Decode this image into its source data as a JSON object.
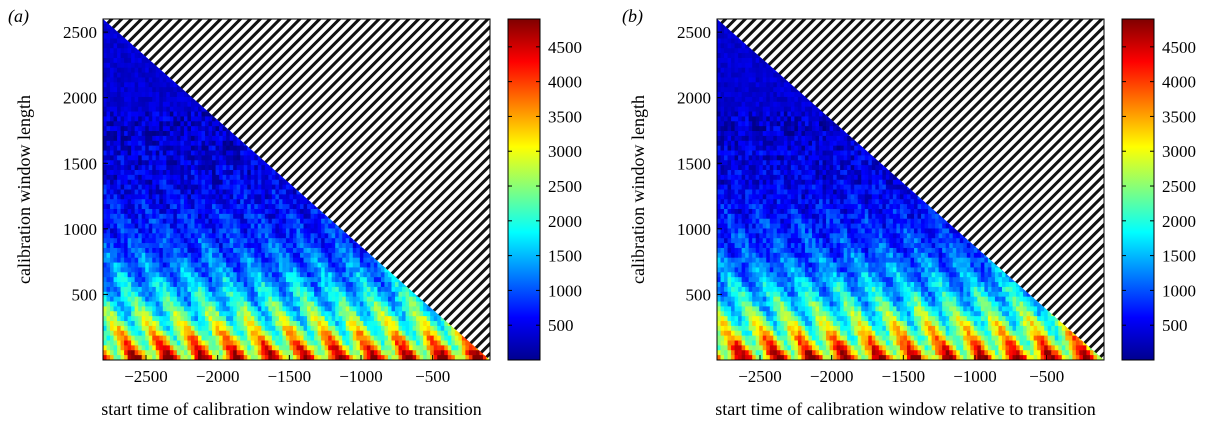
{
  "chart_data": [
    {
      "type": "heatmap",
      "panel_label": "(a)",
      "xlabel": "start time of calibration window relative to transition",
      "ylabel": "calibration window length",
      "xlim": [
        -2800,
        -100
      ],
      "ylim": [
        0,
        2600
      ],
      "xticks": [
        -2500,
        -2000,
        -1500,
        -1000,
        -500
      ],
      "xtick_labels": [
        "−2500",
        "−2000",
        "−1500",
        "−1000",
        "−500"
      ],
      "yticks": [
        500,
        1000,
        1500,
        2000,
        2500
      ],
      "ytick_labels": [
        "500",
        "1000",
        "1500",
        "2000",
        "2500"
      ],
      "colorbar": {
        "min": 0,
        "max": 4900,
        "ticks": [
          500,
          1000,
          1500,
          2000,
          2500,
          3000,
          3500,
          4000,
          4500
        ],
        "tick_labels": [
          "500",
          "1000",
          "1500",
          "2000",
          "2500",
          "3000",
          "3500",
          "4000",
          "4500"
        ],
        "colormap": "jet"
      },
      "region": "lower-left triangle (start + length ≤ −100), undefined region hatched",
      "grid": false
    },
    {
      "type": "heatmap",
      "panel_label": "(b)",
      "xlabel": "start time of calibration window relative to transition",
      "ylabel": "calibration window length",
      "xlim": [
        -2800,
        -100
      ],
      "ylim": [
        0,
        2600
      ],
      "xticks": [
        -2500,
        -2000,
        -1500,
        -1000,
        -500
      ],
      "xtick_labels": [
        "−2500",
        "−2000",
        "−1500",
        "−1000",
        "−500"
      ],
      "yticks": [
        500,
        1000,
        1500,
        2000,
        2500
      ],
      "ytick_labels": [
        "500",
        "1000",
        "1500",
        "2000",
        "2500"
      ],
      "colorbar": {
        "min": 0,
        "max": 4900,
        "ticks": [
          500,
          1000,
          1500,
          2000,
          2500,
          3000,
          3500,
          4000,
          4500
        ],
        "tick_labels": [
          "500",
          "1000",
          "1500",
          "2000",
          "2500",
          "3000",
          "3500",
          "4000",
          "4500"
        ],
        "colormap": "jet"
      },
      "region": "lower-left triangle (start + length ≤ −100), undefined region hatched",
      "grid": false
    }
  ]
}
